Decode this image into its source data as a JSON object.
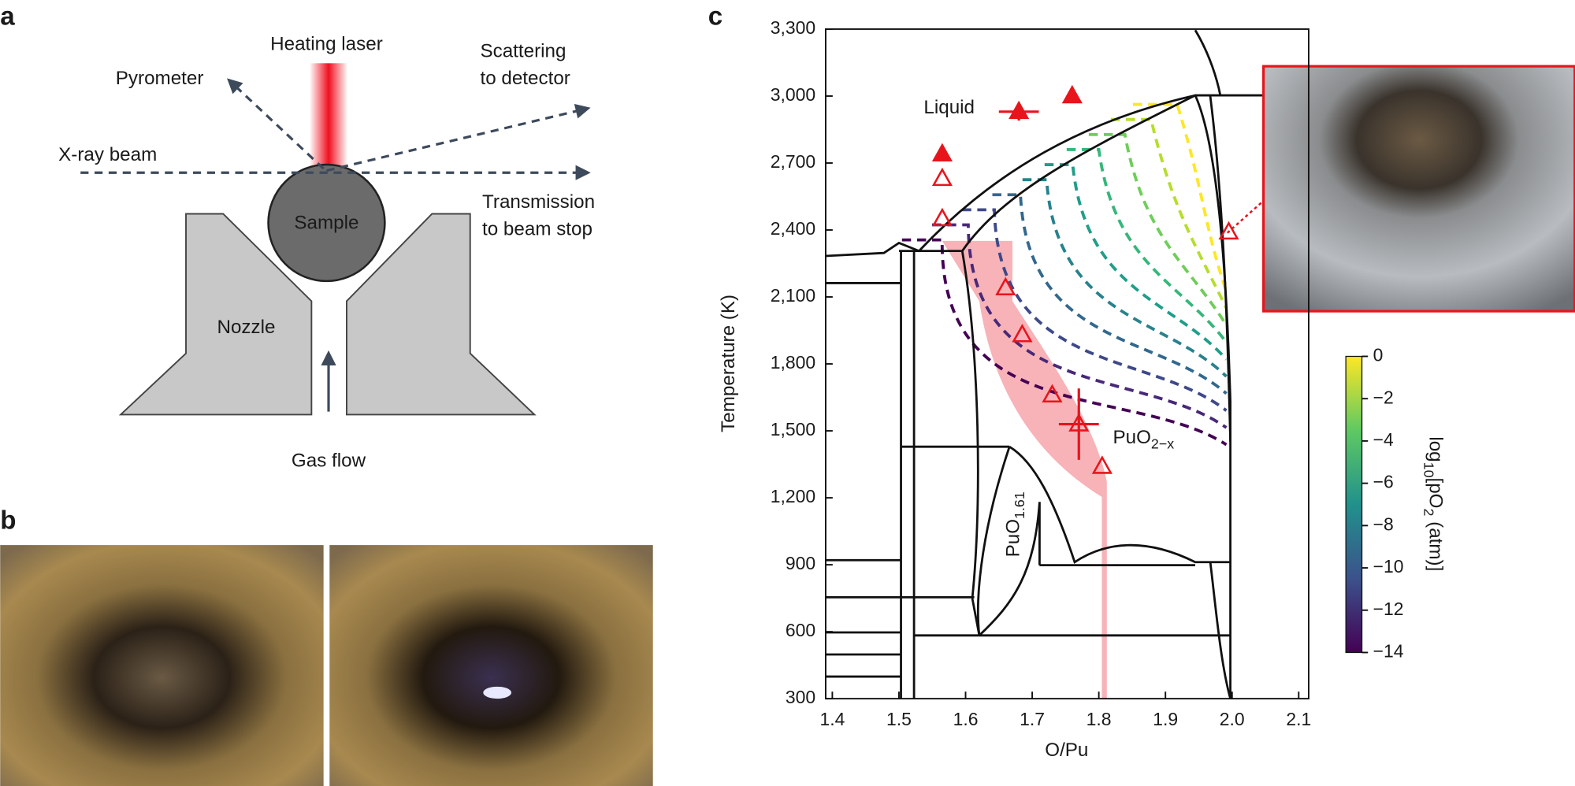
{
  "panel_labels": [
    "a",
    "b",
    "c"
  ],
  "diagram": {
    "heating_laser": "Heating laser",
    "pyrometer": "Pyrometer",
    "scattering": [
      "Scattering",
      "to detector"
    ],
    "xray": "X-ray beam",
    "sample": "Sample",
    "transmission": [
      "Transmission",
      "to beam stop"
    ],
    "nozzle": "Nozzle",
    "gas_flow": "Gas flow"
  },
  "chart_data": {
    "type": "scatter",
    "xlabel": "O/Pu",
    "ylabel": "Temperature (K)",
    "xlim": [
      1.39,
      2.115
    ],
    "ylim": [
      300,
      3300
    ],
    "xticks": [
      1.4,
      1.5,
      1.6,
      1.7,
      1.8,
      1.9,
      {
        "value": 2,
        "label": "2.0"
      },
      2.1
    ],
    "yticks": [
      300,
      600,
      900,
      {
        "value": 1200,
        "label": "1,200"
      },
      {
        "value": 1500,
        "label": "1,500"
      },
      {
        "value": 1800,
        "label": "1,800"
      },
      {
        "value": 2100,
        "label": "2,100"
      },
      {
        "value": 2400,
        "label": "2,400"
      },
      {
        "value": 2700,
        "label": "2,700"
      },
      {
        "value": 3000,
        "label": "3,000"
      },
      {
        "value": 3300,
        "label": "3,300"
      }
    ],
    "annotations": {
      "liquid": "Liquid",
      "puo2x": [
        "PuO",
        "2−x"
      ],
      "puo161": [
        "PuO",
        "1.61"
      ]
    },
    "series": [
      {
        "color": "#e8141c",
        "marker": "filled",
        "x": [
          1.565,
          1.68,
          1.76
        ],
        "values": [
          2740,
          2930,
          3000
        ],
        "xerr": [
          null,
          0.03,
          null
        ],
        "yerr": [
          null,
          40,
          null
        ]
      },
      {
        "color": "#e8141c",
        "marker": "hollow",
        "x": [
          1.565,
          1.565,
          1.66,
          1.685,
          1.73,
          1.77,
          1.805,
          1.995
        ],
        "values": [
          2630,
          2450,
          2140,
          1930,
          1660,
          1530,
          1340,
          2390
        ],
        "xerr": [
          null,
          null,
          null,
          null,
          null,
          0.03,
          null,
          null
        ],
        "yerr": [
          null,
          null,
          null,
          null,
          null,
          160,
          null,
          null
        ]
      }
    ],
    "colorbar": {
      "label": [
        "log",
        "10",
        "[pO",
        "2",
        " (atm)]"
      ],
      "lim": [
        -14,
        0
      ],
      "ticks": [
        0,
        {
          "value": -2,
          "label": "−2"
        },
        {
          "value": -4,
          "label": "−4"
        },
        {
          "value": -6,
          "label": "−6"
        },
        {
          "value": -8,
          "label": "−8"
        },
        {
          "value": -10,
          "label": "−10"
        },
        {
          "value": -12,
          "label": "−12"
        },
        {
          "value": -14,
          "label": "−14"
        }
      ]
    }
  }
}
